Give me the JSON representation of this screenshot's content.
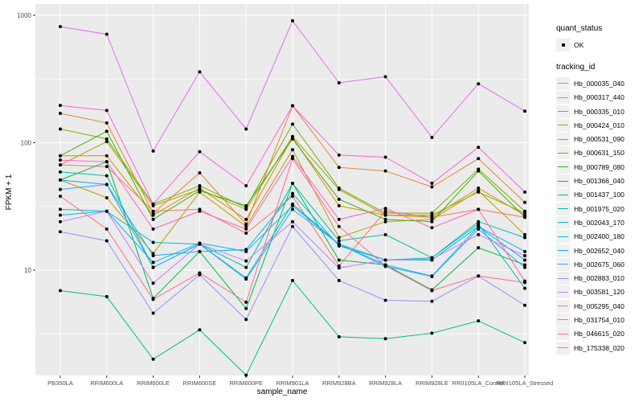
{
  "chart_data": {
    "type": "line",
    "xlabel": "sample_name",
    "ylabel": "FPKM + 1",
    "y_scale": "log10",
    "y_tick_labels": [
      "1000",
      "100",
      "10"
    ],
    "y_tick_values": [
      1000,
      100,
      10
    ],
    "y_minor_values": [
      316.2,
      31.62,
      3.162
    ],
    "ylim": [
      1.45,
      1230
    ],
    "grid": "on",
    "legend_position": "right",
    "panel_bg": "#ebebeb",
    "grid_color": "#ffffff",
    "tick_label_color": "#4d4d4d",
    "point_color": "#000000",
    "categories": [
      "PB350LA",
      "RRIM600LA",
      "RRIM600LE",
      "RRIM600SE",
      "RRIM600PE",
      "RRIM901LA",
      "RRIM928BA",
      "RRIM928LA",
      "RRIM928LE",
      "RRII105LA_Control",
      "RRII105LA_Stressed"
    ],
    "legend": {
      "quant_status_title": "quant_status",
      "ok_label": "OK",
      "tracking_id_title": "tracking_id"
    },
    "series": [
      {
        "name": "Hb_000035_040",
        "color": "#F8766D",
        "values": [
          67,
          65,
          29,
          30,
          19.5,
          38,
          10.8,
          29,
          26,
          30,
          26
        ]
      },
      {
        "name": "Hb_000317_440",
        "color": "#EA8331",
        "values": [
          170,
          143,
          28,
          58,
          23,
          195,
          64,
          60,
          45,
          75,
          34
        ]
      },
      {
        "name": "Hb_000335_010",
        "color": "#D89000",
        "values": [
          79,
          79,
          27,
          44,
          25,
          110,
          32,
          27,
          26,
          44,
          27
        ]
      },
      {
        "name": "Hb_000424_010",
        "color": "#C09B00",
        "values": [
          51,
          37,
          13.5,
          41,
          22,
          88,
          18,
          24,
          25,
          42,
          19
        ]
      },
      {
        "name": "Hb_000531_090",
        "color": "#A3A500",
        "values": [
          67,
          102,
          32,
          43,
          30,
          112,
          43,
          27,
          27,
          41,
          28
        ]
      },
      {
        "name": "Hb_000631_150",
        "color": "#7CAE00",
        "values": [
          128,
          107,
          33,
          46,
          31,
          140,
          44,
          28,
          28,
          62,
          29
        ]
      },
      {
        "name": "Hb_000789_080",
        "color": "#39B600",
        "values": [
          79,
          123,
          25,
          42,
          32,
          107,
          36,
          25,
          24,
          60,
          26
        ]
      },
      {
        "name": "Hb_001366_040",
        "color": "#00BB4E",
        "values": [
          51,
          71,
          6.0,
          14,
          5.0,
          48,
          12,
          11,
          7.0,
          15,
          11
        ]
      },
      {
        "name": "Hb_001437_100",
        "color": "#00C087",
        "values": [
          6.9,
          6.2,
          2.0,
          3.4,
          1.5,
          8.3,
          3.0,
          2.9,
          3.2,
          4.0,
          2.7
        ]
      },
      {
        "name": "Hb_001975_020",
        "color": "#00C1A3",
        "values": [
          59,
          55,
          10.5,
          16,
          10.5,
          48,
          17,
          19,
          12.5,
          23,
          7.2
        ]
      },
      {
        "name": "Hb_002043_170",
        "color": "#00BFC4",
        "values": [
          30,
          29,
          16.5,
          16,
          8.7,
          33,
          16,
          12,
          12.5,
          24,
          18
        ]
      },
      {
        "name": "Hb_002400_180",
        "color": "#00BAE0",
        "values": [
          27,
          29,
          11.5,
          16.3,
          14,
          32,
          16,
          11,
          9.0,
          22,
          14
        ]
      },
      {
        "name": "Hb_002652_040",
        "color": "#00B0F6",
        "values": [
          51,
          47,
          13,
          14,
          14.5,
          40,
          15.5,
          12,
          12,
          22,
          12
        ]
      },
      {
        "name": "Hb_002675_060",
        "color": "#35A2FF",
        "values": [
          43,
          47,
          10.5,
          16,
          8.5,
          30,
          16,
          10.7,
          8.9,
          21,
          10.5
        ]
      },
      {
        "name": "Hb_002883_010",
        "color": "#9590FF",
        "values": [
          20,
          17,
          4.6,
          9.2,
          4.1,
          22,
          8.3,
          5.8,
          5.7,
          9.0,
          5.3
        ]
      },
      {
        "name": "Hb_003581_120",
        "color": "#C77CFF",
        "values": [
          24,
          29,
          7.9,
          16,
          11.8,
          24,
          10.4,
          12,
          12.2,
          19,
          13
        ]
      },
      {
        "name": "Hb_005295_040",
        "color": "#E76BF3",
        "values": [
          815,
          710,
          86,
          360,
          128,
          905,
          295,
          330,
          110,
          290,
          177
        ]
      },
      {
        "name": "Hb_031754_010",
        "color": "#FA62DB",
        "values": [
          196,
          179,
          33,
          85,
          46,
          195,
          80,
          77,
          48,
          92,
          41
        ]
      },
      {
        "name": "Hb_046615_020",
        "color": "#FF62BC",
        "values": [
          73,
          71,
          21,
          29,
          21,
          78,
          25,
          30.5,
          21.5,
          30,
          8.2
        ]
      },
      {
        "name": "Hb_175338_020",
        "color": "#FF6A98",
        "values": [
          38,
          21,
          5.9,
          9.5,
          5.6,
          75,
          22,
          10.8,
          6.9,
          9.0,
          8.0
        ]
      }
    ]
  }
}
